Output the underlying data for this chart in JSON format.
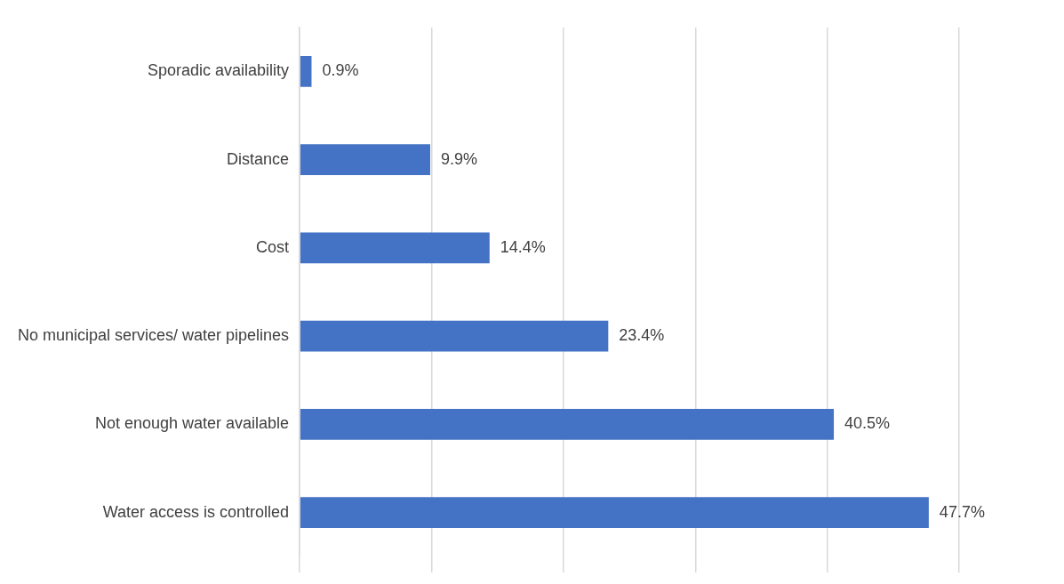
{
  "chart_data": {
    "type": "bar",
    "orientation": "horizontal",
    "categories": [
      "Sporadic availability",
      "Distance",
      "Cost",
      "No municipal services/ water pipelines",
      "Not enough water available",
      "Water access is controlled"
    ],
    "values": [
      0.9,
      9.9,
      14.4,
      23.4,
      40.5,
      47.7
    ],
    "value_labels": [
      "0.9%",
      "9.9%",
      "14.4%",
      "23.4%",
      "40.5%",
      "47.7%"
    ],
    "color": "#4472c4",
    "xlim": [
      0,
      50
    ],
    "xticks": [
      {
        "value": 0,
        "label": null
      },
      {
        "value": 10,
        "label": null
      },
      {
        "value": 20,
        "label": null
      },
      {
        "value": 30,
        "label": null
      },
      {
        "value": 40,
        "label": null
      },
      {
        "value": 50,
        "label": null
      }
    ],
    "grid": "x",
    "tick_labels": "y",
    "legend": false
  }
}
